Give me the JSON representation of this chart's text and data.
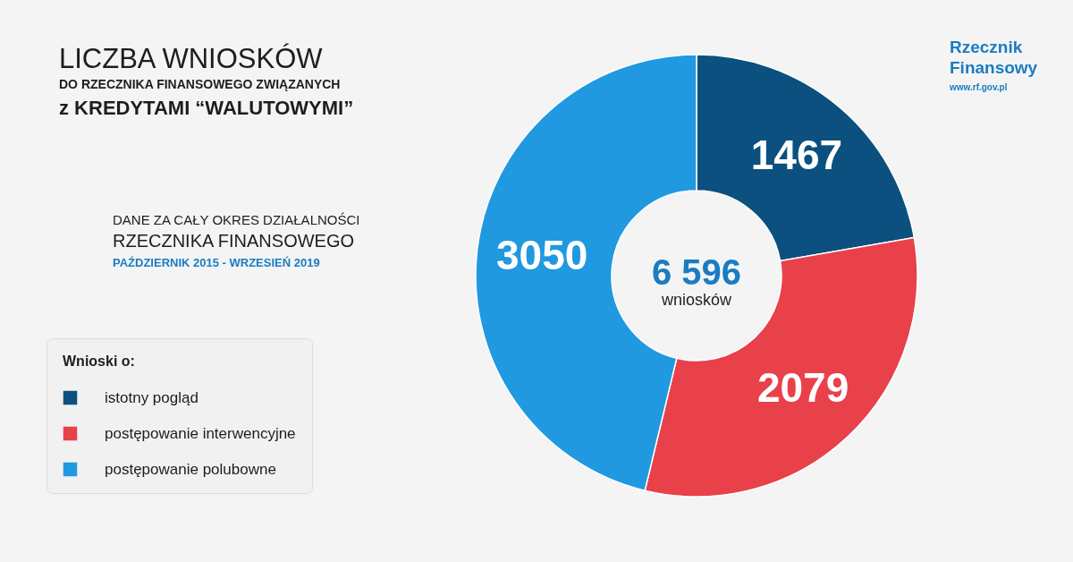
{
  "chart_data": {
    "type": "donut",
    "title": "LICZBA WNIOSKÓW\nDO RZECZNIKA FINANSOWEGO ZWIĄZANYCH\nz KREDYTAMI “WALUTOWYMI”",
    "subtitle": "DANE ZA CAŁY OKRES DZIAŁALNOŚCI\nRZECZNIKA FINANSOWEGO",
    "legend_title": "Wnioski o:",
    "categories": [
      "istotny pogląd",
      "postępowanie interwencyjne",
      "postępowanie polubowne"
    ],
    "values": [
      1467,
      2079,
      3050
    ],
    "colors": [
      "#0b507e",
      "#e8414a",
      "#2099e0"
    ],
    "data_labels": true,
    "legend": "left",
    "annotations": [
      "6 596",
      "wniosków",
      "PAŹDZIERNIK 2015 - WRZESIEŃ 2019",
      "Rzecznik\nFinansowy",
      "www.rf.gov.pl"
    ]
  }
}
